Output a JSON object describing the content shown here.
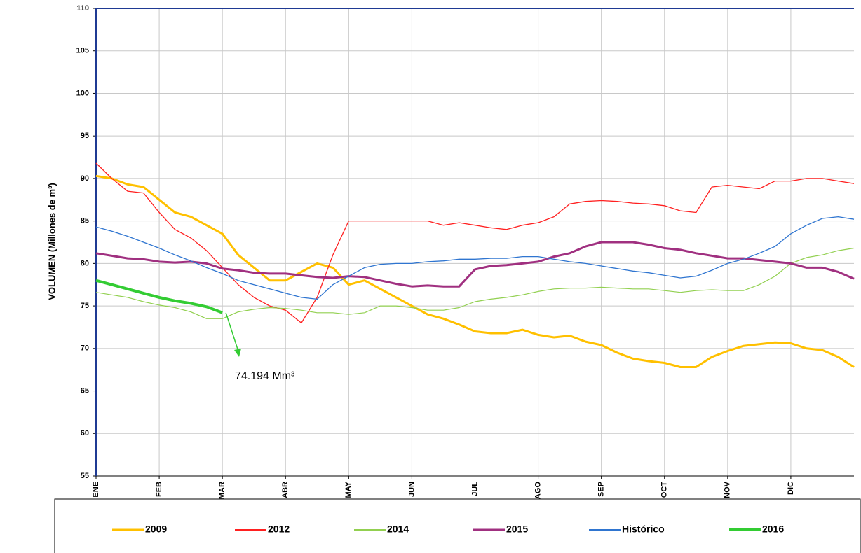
{
  "chart_data": {
    "type": "line",
    "y_label": "VOLUMEN (Millones de m³)",
    "annotation": "74.194 Mm³",
    "categories": [
      "ENE",
      null,
      null,
      null,
      "FEB",
      null,
      null,
      null,
      "MAR",
      null,
      null,
      null,
      "ABR",
      null,
      null,
      null,
      "MAY",
      null,
      null,
      null,
      "JUN",
      null,
      null,
      null,
      "JUL",
      null,
      null,
      null,
      "AGO",
      null,
      null,
      null,
      "SEP",
      null,
      null,
      null,
      "OCT",
      null,
      null,
      null,
      "NOV",
      null,
      null,
      null,
      "DIC",
      null,
      null,
      null,
      null
    ],
    "ylim": [
      55,
      110
    ],
    "yticks": [
      55,
      60,
      65,
      70,
      75,
      80,
      85,
      90,
      95,
      100,
      105,
      110
    ],
    "grid": true,
    "series": [
      {
        "name": "2009",
        "color": "#ffc000",
        "width": 3,
        "values": [
          90.3,
          90.0,
          89.3,
          89.0,
          87.5,
          86.0,
          85.5,
          84.5,
          83.5,
          81.0,
          79.5,
          78.0,
          78.0,
          79.0,
          80.0,
          79.5,
          77.5,
          78.0,
          77.0,
          76.0,
          75.0,
          74.0,
          73.5,
          72.8,
          72.0,
          71.8,
          71.8,
          72.2,
          71.6,
          71.3,
          71.5,
          70.8,
          70.4,
          69.5,
          68.8,
          68.5,
          68.3,
          67.8,
          67.8,
          69.0,
          69.7,
          70.3,
          70.5,
          70.7,
          70.6,
          70.0,
          69.8,
          69.0,
          67.8
        ]
      },
      {
        "name": "2012",
        "color": "#ff2020",
        "width": 1.3,
        "values": [
          91.8,
          90.0,
          88.5,
          88.3,
          86.0,
          84.0,
          83.0,
          81.5,
          79.5,
          77.5,
          76.0,
          75.0,
          74.5,
          73.0,
          76.0,
          81.0,
          85.0,
          85.0,
          85.0,
          85.0,
          85.0,
          85.0,
          84.5,
          84.8,
          84.5,
          84.2,
          84.0,
          84.5,
          84.8,
          85.5,
          87.0,
          87.3,
          87.4,
          87.3,
          87.1,
          87.0,
          86.8,
          86.2,
          86.0,
          89.0,
          89.2,
          89.0,
          88.8,
          89.7,
          89.7,
          90.0,
          90.0,
          89.7,
          89.4
        ]
      },
      {
        "name": "2014",
        "color": "#92d050",
        "width": 1.2,
        "values": [
          76.6,
          76.3,
          76.0,
          75.5,
          75.1,
          74.8,
          74.3,
          73.5,
          73.5,
          74.3,
          74.6,
          74.8,
          74.7,
          74.5,
          74.2,
          74.2,
          74.0,
          74.2,
          75.0,
          75.0,
          74.8,
          74.5,
          74.5,
          74.8,
          75.5,
          75.8,
          76.0,
          76.3,
          76.7,
          77.0,
          77.1,
          77.1,
          77.2,
          77.1,
          77.0,
          77.0,
          76.8,
          76.6,
          76.8,
          76.9,
          76.8,
          76.8,
          77.5,
          78.5,
          80.0,
          80.7,
          81.0,
          81.5,
          81.8
        ]
      },
      {
        "name": "2015",
        "color": "#a03080",
        "width": 3,
        "values": [
          81.2,
          80.9,
          80.6,
          80.5,
          80.2,
          80.1,
          80.2,
          80.0,
          79.4,
          79.2,
          78.9,
          78.8,
          78.8,
          78.6,
          78.4,
          78.3,
          78.5,
          78.4,
          78.0,
          77.6,
          77.3,
          77.4,
          77.3,
          77.3,
          79.3,
          79.7,
          79.8,
          80.0,
          80.2,
          80.8,
          81.2,
          82.0,
          82.5,
          82.5,
          82.5,
          82.2,
          81.8,
          81.6,
          81.2,
          80.9,
          80.6,
          80.6,
          80.4,
          80.2,
          80.0,
          79.5,
          79.5,
          79.0,
          78.2
        ]
      },
      {
        "name": "Histórico",
        "color": "#2f75d0",
        "width": 1.3,
        "values": [
          84.3,
          83.8,
          83.2,
          82.5,
          81.8,
          81.0,
          80.3,
          79.5,
          78.8,
          78.0,
          77.5,
          77.0,
          76.5,
          76.0,
          75.8,
          77.5,
          78.5,
          79.5,
          79.9,
          80.0,
          80.0,
          80.2,
          80.3,
          80.5,
          80.5,
          80.6,
          80.6,
          80.8,
          80.8,
          80.5,
          80.2,
          80.0,
          79.7,
          79.4,
          79.1,
          78.9,
          78.6,
          78.3,
          78.5,
          79.2,
          80.0,
          80.5,
          81.2,
          82.0,
          83.5,
          84.5,
          85.3,
          85.5,
          85.2
        ]
      },
      {
        "name": "2016",
        "color": "#33cc33",
        "width": 4,
        "values": [
          78.0,
          77.5,
          77.0,
          76.5,
          76.0,
          75.6,
          75.3,
          74.9,
          74.2,
          null,
          null,
          null,
          null,
          null,
          null,
          null,
          null,
          null,
          null,
          null,
          null,
          null,
          null,
          null,
          null,
          null,
          null,
          null,
          null,
          null,
          null,
          null,
          null,
          null,
          null,
          null,
          null,
          null,
          null,
          null,
          null,
          null,
          null,
          null,
          null,
          null,
          null,
          null,
          null
        ]
      }
    ]
  }
}
